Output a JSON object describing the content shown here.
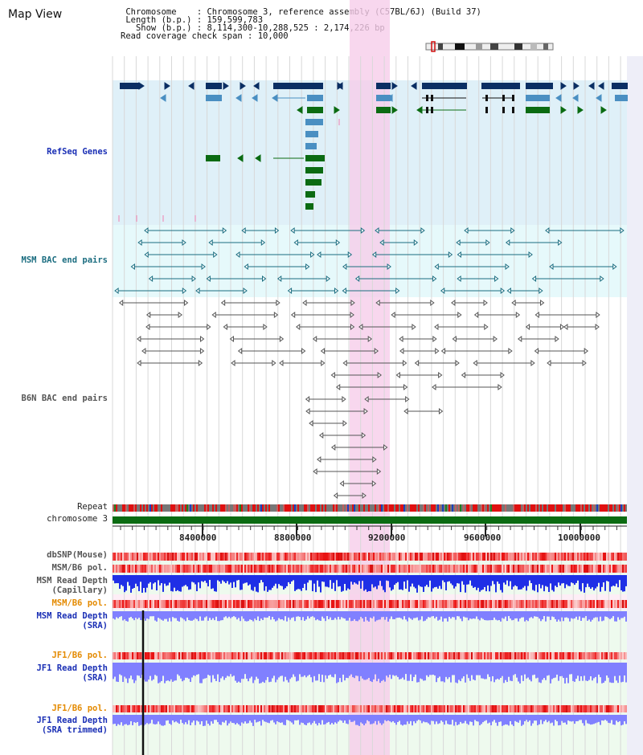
{
  "page": {
    "title": "Map View"
  },
  "info": {
    "chromosome_key": "Chromosome",
    "chromosome_val": ": Chromosome 3, reference assembly (C57BL/6J) (Build 37)",
    "length_key": "Length (b.p.)",
    "length_val": ": 159,599,783",
    "show_key": "Show (b.p.)",
    "show_val": ": 8,114,300-10,288,525 : 2,174,226 bp",
    "span_key": "Read coverage check span",
    "span_val": ": 10,000"
  },
  "tracks": {
    "refseq": "RefSeq Genes",
    "msm_bac": "MSM BAC end pairs",
    "b6n_bac": "B6N BAC end pairs",
    "repeat": "Repeat",
    "chromosome": "chromosome 3",
    "dbsnp": "dbSNP(Mouse)",
    "msm_b6_pol": "MSM/B6 pol.",
    "msm_read_depth_cap_1": "MSM Read Depth",
    "msm_read_depth_cap_2": "(Capillary)",
    "msm_b6_pol_sra": "MSM/B6 pol.",
    "msm_read_depth_sra_1": "MSM Read Depth",
    "msm_read_depth_sra_2": "(SRA)",
    "jf1_b6_pol": "JF1/B6 pol.",
    "jf1_read_depth_1": "JF1 Read Depth",
    "jf1_read_depth_2": "(SRA)",
    "jf1_b6_pol_trim": "JF1/B6 pol.",
    "jf1_read_depth_trim_1": "JF1 Read Depth",
    "jf1_read_depth_trim_2": "(SRA trimmed)"
  },
  "scale": {
    "ticks": [
      "8400000",
      "8800000",
      "9200000",
      "9600000",
      "10000000"
    ]
  },
  "colors": {
    "refseq_bg": "#dff0f8",
    "msm_bg": "#e6f9fb",
    "highlight": "#f9d9f2",
    "gene_dark": "#0b2e63",
    "gene_mid": "#4a8fc2",
    "gene_green": "#0b6b12",
    "chrom_bar": "#0b6b12",
    "depth_blue": "#1f2fe6",
    "depth_light": "#8888ff"
  }
}
